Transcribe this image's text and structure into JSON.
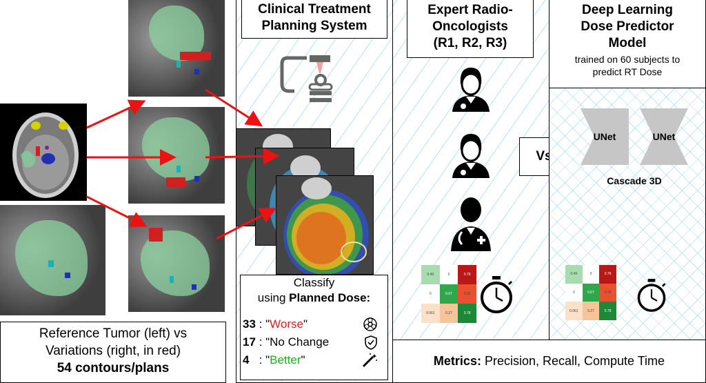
{
  "reference": {
    "line1": "Reference Tumor (left) vs",
    "line2": "Variations (right, in red)",
    "line3": "54 contours/plans"
  },
  "ctps": {
    "line1": "Clinical Treatment",
    "line2": "Planning System"
  },
  "classify": {
    "line1": "Classify",
    "line2_prefix": "using ",
    "line2_bold": "Planned Dose:",
    "rows": [
      {
        "count": "33",
        "sep": " : ",
        "open": "\"",
        "word": "Worse",
        "close": "\"",
        "color": "#e02020",
        "icon": "biohazard-icon"
      },
      {
        "count": "17",
        "sep": " : ",
        "open": "\"",
        "word": "No Change",
        "close": "",
        "color": "#000000",
        "icon": "shield-check-icon"
      },
      {
        "count": "4",
        "sep": "   : ",
        "open": "\"",
        "word": "Better",
        "close": "\"",
        "color": "#22aa22",
        "icon": "magic-wand-icon"
      }
    ]
  },
  "experts": {
    "line1": "Expert Radio-",
    "line2": "Oncologists",
    "line3": "(R1, R2, R3)"
  },
  "vs": "Vs",
  "model": {
    "line1": "Deep Learning",
    "line2": "Dose Predictor",
    "line3": "Model",
    "sub1": "trained on 60 subjects to",
    "sub2": "predict RT Dose",
    "unet1": "UNet",
    "unet2": "UNet",
    "cascade": "Cascade 3D"
  },
  "metrics": {
    "label": "Metrics:",
    "text": " Precision, Recall, Compute Time"
  },
  "confusion_left": [
    "0.49",
    "0",
    "0.76",
    "0",
    "0.67",
    "0.33",
    "0.061",
    "0.27",
    "0.78"
  ],
  "confusion_right": [
    "0.49",
    "0",
    "0.76",
    "0",
    "0.67",
    "0.33",
    "0.061",
    "0.27",
    "0.78"
  ],
  "colors": {
    "arrow": "#ee1111",
    "hatch": "#78cde1",
    "worse": "#e02020",
    "better": "#22aa22"
  }
}
